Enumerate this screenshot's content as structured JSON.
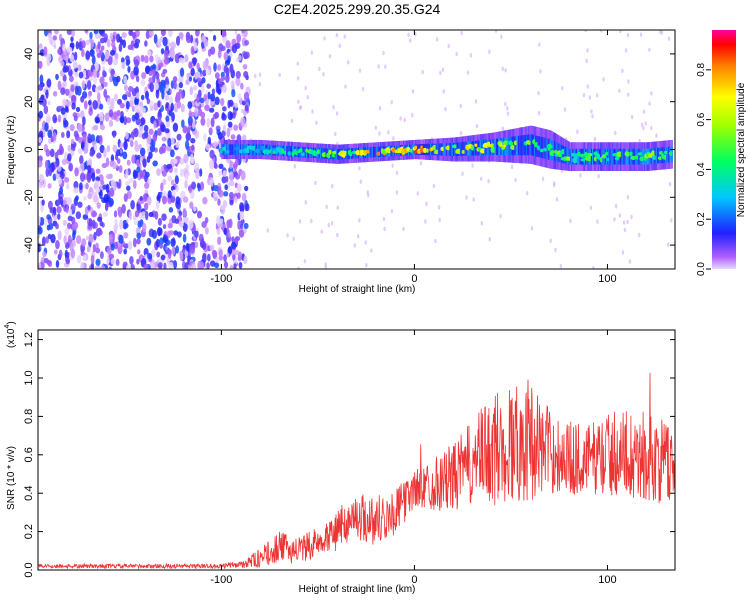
{
  "title": "C2E4.2025.299.20.35.G24",
  "chart_data": [
    {
      "type": "heatmap",
      "xlabel": "Height of straight line (km)",
      "ylabel": "Frequency (Hz)",
      "xlim": [
        -195,
        135
      ],
      "ylim": [
        -50,
        50
      ],
      "xticks": [
        -100,
        0,
        100
      ],
      "yticks": [
        -40,
        -20,
        0,
        20,
        40
      ],
      "colorbar": {
        "label": "Normalized spectral amplitude",
        "range": [
          0.0,
          0.96
        ],
        "ticks": [
          0.0,
          0.2,
          0.4,
          0.6,
          0.8
        ]
      },
      "noise_region": [
        -195,
        -90
      ],
      "ridge": {
        "x": [
          -100,
          -80,
          -60,
          -40,
          -20,
          0,
          20,
          40,
          60,
          70,
          80,
          100,
          120,
          133
        ],
        "frequency": [
          0,
          0,
          -1,
          -2,
          -1,
          0,
          0,
          1,
          2,
          0,
          -3,
          -3,
          -3,
          -2
        ],
        "halfwidth": [
          4,
          4,
          4,
          4,
          4,
          4,
          5,
          6,
          8,
          8,
          6,
          6,
          6,
          6
        ],
        "peak_amplitude": [
          0.35,
          0.4,
          0.5,
          0.7,
          0.85,
          0.92,
          0.85,
          0.75,
          0.6,
          0.55,
          0.6,
          0.55,
          0.65,
          0.5
        ]
      }
    },
    {
      "type": "line",
      "xlabel": "Height of straight line (km)",
      "ylabel": "SNR (10 * v/v)",
      "scale_note": "(x10",
      "scale_exp": "4",
      "xlim": [
        -195,
        135
      ],
      "ylim": [
        0,
        1.25
      ],
      "xticks": [
        -100,
        0,
        100
      ],
      "yticks": [
        0.0,
        0.2,
        0.4,
        0.6,
        0.8,
        1.0,
        1.2
      ],
      "series": [
        {
          "name": "SNR",
          "color": "#ee3333",
          "envelope_x": [
            -195,
            -100,
            -90,
            -80,
            -70,
            -60,
            -50,
            -40,
            -30,
            -20,
            -10,
            0,
            10,
            20,
            30,
            40,
            50,
            60,
            70,
            80,
            90,
            100,
            110,
            120,
            135
          ],
          "envelope_mean": [
            0.02,
            0.02,
            0.03,
            0.06,
            0.12,
            0.1,
            0.15,
            0.22,
            0.28,
            0.26,
            0.3,
            0.42,
            0.45,
            0.48,
            0.56,
            0.62,
            0.66,
            0.68,
            0.62,
            0.58,
            0.58,
            0.6,
            0.62,
            0.58,
            0.55
          ],
          "envelope_spread": [
            0.01,
            0.012,
            0.02,
            0.05,
            0.08,
            0.07,
            0.08,
            0.1,
            0.12,
            0.14,
            0.12,
            0.1,
            0.14,
            0.18,
            0.22,
            0.3,
            0.32,
            0.32,
            0.22,
            0.2,
            0.18,
            0.22,
            0.22,
            0.25,
            0.2
          ]
        }
      ]
    }
  ]
}
